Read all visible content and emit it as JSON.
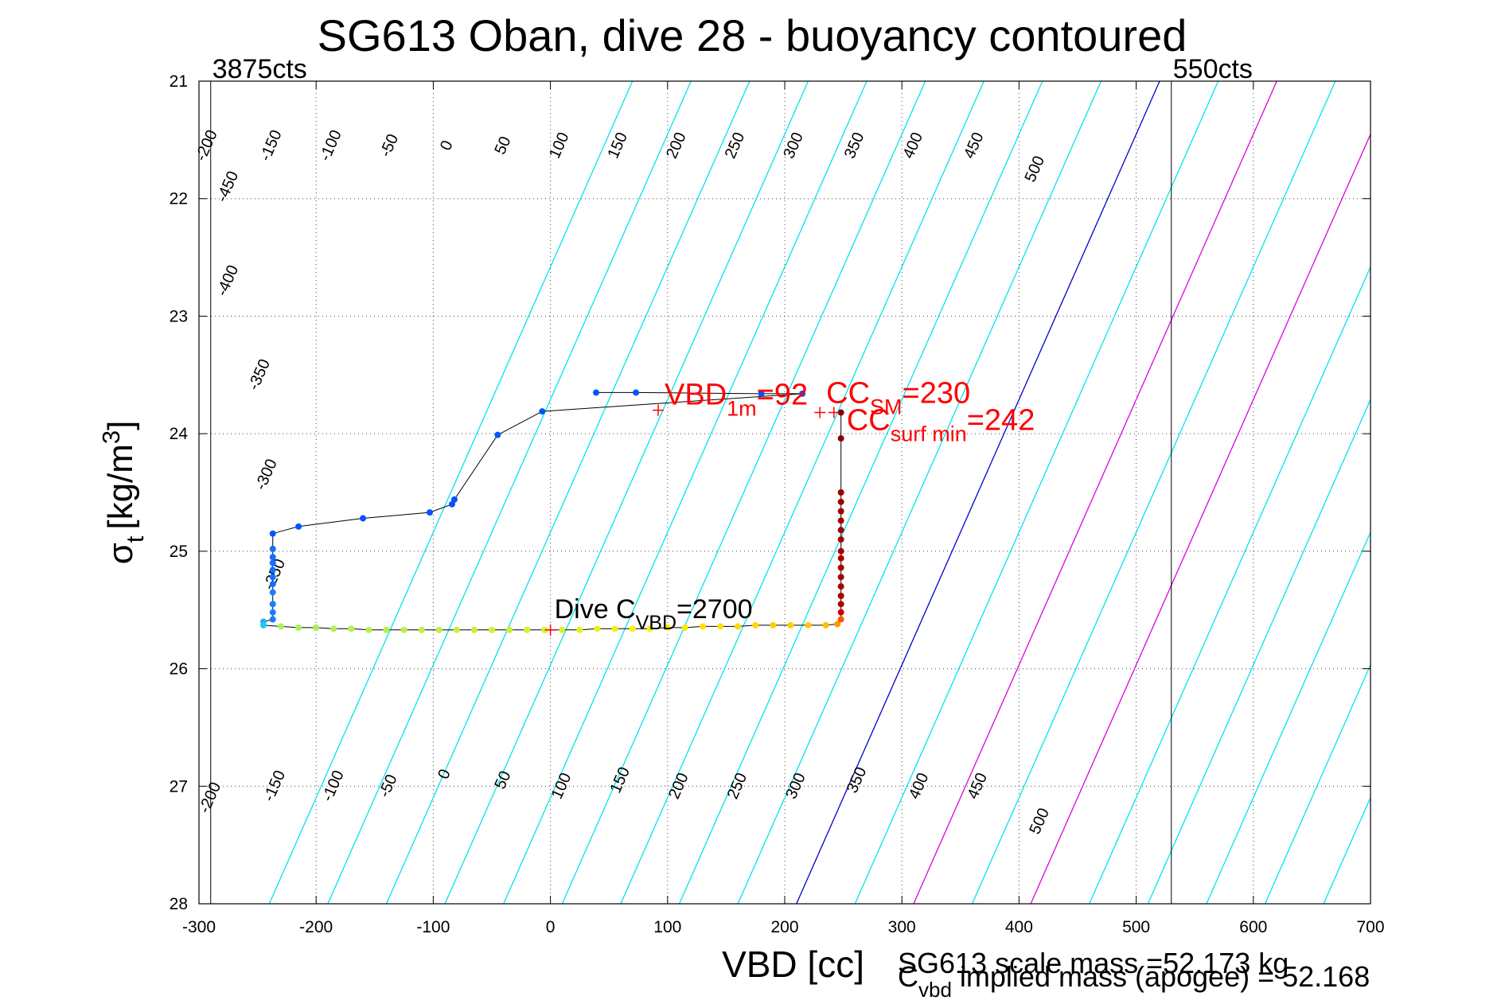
{
  "chart_data": {
    "type": "scatter",
    "title": "SG613 Oban, dive 28 - buoyancy contoured",
    "xlabel": "VBD [cc]",
    "ylabel_main": "σ",
    "ylabel_sub": "t",
    "ylabel_unit": "[kg/m",
    "ylabel_sup": "3",
    "ylabel_close": "]",
    "xlim": [
      -300,
      700
    ],
    "ylim": [
      21,
      28
    ],
    "y_reversed": true,
    "grid": true,
    "x_ticks": [
      -300,
      -200,
      -100,
      0,
      100,
      200,
      300,
      400,
      500,
      600,
      700
    ],
    "y_ticks": [
      21,
      22,
      23,
      24,
      25,
      26,
      27,
      28
    ],
    "vbd_limits": {
      "min": {
        "x": -290,
        "label": "3875cts"
      },
      "max": {
        "x": 530,
        "label": "550cts"
      }
    },
    "contour_geometry": {
      "ref_x_at_top": 520,
      "ref_x_at_bottom": 210,
      "spacing": 50
    },
    "contour_values": [
      -450,
      -400,
      -350,
      -300,
      -250,
      -200,
      -150,
      -100,
      -50,
      0,
      50,
      100,
      150,
      200,
      250,
      300,
      350,
      400,
      450,
      500
    ],
    "contour_colors": {
      "default": "#00e5ee",
      "zero": "#0000cc",
      "highlight": "#e000e0",
      "highlight_values": [
        100,
        200
      ]
    },
    "top_labels": [
      {
        "text": "-450",
        "x": -275,
        "y": 21.9
      },
      {
        "text": "-400",
        "x": -275,
        "y": 22.7
      },
      {
        "text": "-350",
        "x": -248,
        "y": 23.5
      },
      {
        "text": "-300",
        "x": -242,
        "y": 24.35
      },
      {
        "text": "-250",
        "x": -235,
        "y": 25.2
      },
      {
        "text": "-200",
        "x": -293,
        "y": 21.55
      },
      {
        "text": "-150",
        "x": -238,
        "y": 21.55
      },
      {
        "text": "-100",
        "x": -187,
        "y": 21.55
      },
      {
        "text": "-50",
        "x": -137,
        "y": 21.55
      },
      {
        "text": "0",
        "x": -88,
        "y": 21.55
      },
      {
        "text": "50",
        "x": -40,
        "y": 21.55
      },
      {
        "text": "100",
        "x": 8,
        "y": 21.55
      },
      {
        "text": "150",
        "x": 58,
        "y": 21.55
      },
      {
        "text": "200",
        "x": 108,
        "y": 21.55
      },
      {
        "text": "250",
        "x": 158,
        "y": 21.55
      },
      {
        "text": "300",
        "x": 208,
        "y": 21.55
      },
      {
        "text": "350",
        "x": 260,
        "y": 21.55
      },
      {
        "text": "400",
        "x": 310,
        "y": 21.55
      },
      {
        "text": "450",
        "x": 362,
        "y": 21.55
      },
      {
        "text": "500",
        "x": 414,
        "y": 21.75
      }
    ],
    "bottom_labels": [
      {
        "text": "-200",
        "x": -290,
        "y": 27.1
      },
      {
        "text": "-150",
        "x": -235,
        "y": 27.0
      },
      {
        "text": "-100",
        "x": -185,
        "y": 27.0
      },
      {
        "text": "-50",
        "x": -138,
        "y": 27.0
      },
      {
        "text": "0",
        "x": -90,
        "y": 26.9
      },
      {
        "text": "50",
        "x": -40,
        "y": 26.95
      },
      {
        "text": "100",
        "x": 10,
        "y": 27.0
      },
      {
        "text": "150",
        "x": 60,
        "y": 26.95
      },
      {
        "text": "200",
        "x": 110,
        "y": 27.0
      },
      {
        "text": "250",
        "x": 160,
        "y": 27.0
      },
      {
        "text": "300",
        "x": 210,
        "y": 27.0
      },
      {
        "text": "350",
        "x": 262,
        "y": 26.95
      },
      {
        "text": "400",
        "x": 315,
        "y": 27.0
      },
      {
        "text": "450",
        "x": 365,
        "y": 27.0
      },
      {
        "text": "500",
        "x": 418,
        "y": 27.3
      }
    ],
    "trace_line_color": "#000000",
    "trace_points": [
      {
        "x": 39,
        "y": 23.65,
        "c": "#0055ff"
      },
      {
        "x": 73,
        "y": 23.65,
        "c": "#0055ff"
      },
      {
        "x": 180,
        "y": 23.66,
        "c": "#0055ff"
      },
      {
        "x": 215,
        "y": 23.66,
        "c": "#0055ff"
      },
      {
        "x": -7,
        "y": 23.81,
        "c": "#0055ff"
      },
      {
        "x": -45,
        "y": 24.01,
        "c": "#0055ff"
      },
      {
        "x": -82,
        "y": 24.56,
        "c": "#0055ff"
      },
      {
        "x": -84,
        "y": 24.6,
        "c": "#0055ff"
      },
      {
        "x": -103,
        "y": 24.67,
        "c": "#0055ff"
      },
      {
        "x": -160,
        "y": 24.72,
        "c": "#0055ff"
      },
      {
        "x": -215,
        "y": 24.79,
        "c": "#0055ff"
      },
      {
        "x": -237,
        "y": 24.85,
        "c": "#0055ff"
      },
      {
        "x": -237,
        "y": 24.98,
        "c": "#1470ff"
      },
      {
        "x": -237,
        "y": 25.05,
        "c": "#1470ff"
      },
      {
        "x": -237,
        "y": 25.1,
        "c": "#1470ff"
      },
      {
        "x": -237,
        "y": 25.16,
        "c": "#1470ff"
      },
      {
        "x": -237,
        "y": 25.22,
        "c": "#1470ff"
      },
      {
        "x": -237,
        "y": 25.28,
        "c": "#1470ff"
      },
      {
        "x": -237,
        "y": 25.35,
        "c": "#1a7dff"
      },
      {
        "x": -237,
        "y": 25.45,
        "c": "#1a7dff"
      },
      {
        "x": -237,
        "y": 25.52,
        "c": "#1a7dff"
      },
      {
        "x": -237,
        "y": 25.58,
        "c": "#1a7dff"
      },
      {
        "x": -245,
        "y": 25.6,
        "c": "#20b0f0"
      },
      {
        "x": -245,
        "y": 25.63,
        "c": "#20c8f0"
      },
      {
        "x": -230,
        "y": 25.64,
        "c": "#a8f060"
      },
      {
        "x": -215,
        "y": 25.65,
        "c": "#a8f060"
      },
      {
        "x": -200,
        "y": 25.65,
        "c": "#a8f060"
      },
      {
        "x": -185,
        "y": 25.66,
        "c": "#b4f050"
      },
      {
        "x": -170,
        "y": 25.66,
        "c": "#b4f050"
      },
      {
        "x": -155,
        "y": 25.67,
        "c": "#b4f050"
      },
      {
        "x": -140,
        "y": 25.67,
        "c": "#b4f050"
      },
      {
        "x": -125,
        "y": 25.67,
        "c": "#c0f040"
      },
      {
        "x": -110,
        "y": 25.67,
        "c": "#c0f040"
      },
      {
        "x": -95,
        "y": 25.67,
        "c": "#c0f040"
      },
      {
        "x": -80,
        "y": 25.67,
        "c": "#c8f038"
      },
      {
        "x": -65,
        "y": 25.67,
        "c": "#c8f038"
      },
      {
        "x": -50,
        "y": 25.67,
        "c": "#d0f030"
      },
      {
        "x": -35,
        "y": 25.67,
        "c": "#d0f030"
      },
      {
        "x": -20,
        "y": 25.67,
        "c": "#d8f028"
      },
      {
        "x": -5,
        "y": 25.67,
        "c": "#d8f028"
      },
      {
        "x": 10,
        "y": 25.67,
        "c": "#e0f020"
      },
      {
        "x": 25,
        "y": 25.67,
        "c": "#e8f018"
      },
      {
        "x": 40,
        "y": 25.66,
        "c": "#f0f010"
      },
      {
        "x": 55,
        "y": 25.66,
        "c": "#f0f010"
      },
      {
        "x": 70,
        "y": 25.66,
        "c": "#f8f000"
      },
      {
        "x": 85,
        "y": 25.66,
        "c": "#f8f000"
      },
      {
        "x": 100,
        "y": 25.65,
        "c": "#ffe800"
      },
      {
        "x": 115,
        "y": 25.65,
        "c": "#ffe800"
      },
      {
        "x": 130,
        "y": 25.64,
        "c": "#ffe000"
      },
      {
        "x": 145,
        "y": 25.64,
        "c": "#ffe000"
      },
      {
        "x": 160,
        "y": 25.64,
        "c": "#ffd800"
      },
      {
        "x": 175,
        "y": 25.63,
        "c": "#ffd800"
      },
      {
        "x": 190,
        "y": 25.63,
        "c": "#ffd000"
      },
      {
        "x": 205,
        "y": 25.63,
        "c": "#ffd000"
      },
      {
        "x": 220,
        "y": 25.63,
        "c": "#ffc800"
      },
      {
        "x": 235,
        "y": 25.63,
        "c": "#ffc000"
      },
      {
        "x": 245,
        "y": 25.62,
        "c": "#ff9900"
      },
      {
        "x": 248,
        "y": 25.58,
        "c": "#ff5500"
      },
      {
        "x": 248,
        "y": 25.52,
        "c": "#cc0000"
      },
      {
        "x": 248,
        "y": 25.45,
        "c": "#aa0000"
      },
      {
        "x": 248,
        "y": 25.38,
        "c": "#aa0000"
      },
      {
        "x": 248,
        "y": 25.3,
        "c": "#aa0000"
      },
      {
        "x": 248,
        "y": 25.22,
        "c": "#aa0000"
      },
      {
        "x": 248,
        "y": 25.14,
        "c": "#aa0000"
      },
      {
        "x": 248,
        "y": 25.06,
        "c": "#aa0000"
      },
      {
        "x": 248,
        "y": 25.0,
        "c": "#aa0000"
      },
      {
        "x": 248,
        "y": 24.9,
        "c": "#a00000"
      },
      {
        "x": 248,
        "y": 24.82,
        "c": "#a00000"
      },
      {
        "x": 248,
        "y": 24.74,
        "c": "#a00000"
      },
      {
        "x": 248,
        "y": 24.66,
        "c": "#a00000"
      },
      {
        "x": 248,
        "y": 24.58,
        "c": "#a00000"
      },
      {
        "x": 248,
        "y": 24.5,
        "c": "#990000"
      },
      {
        "x": 248,
        "y": 24.04,
        "c": "#880000"
      },
      {
        "x": 248,
        "y": 23.82,
        "c": "#880000"
      }
    ],
    "markers": {
      "vbd_1m": {
        "x": 92,
        "y": 23.8
      },
      "cc_sm": {
        "x": 230,
        "y": 23.82
      },
      "cc_surf": {
        "x": 242,
        "y": 23.82
      },
      "dive": {
        "x": 0,
        "y": 25.67
      }
    },
    "annotations": {
      "vbd_main": "VBD",
      "vbd_sub": "1m",
      "vbd_val": "=92",
      "ccsm_main": "CC",
      "ccsm_sub": "SM",
      "ccsm_val": "=230",
      "ccsurf_main": "CC",
      "ccsurf_sub": "surf min",
      "ccsurf_val": "=242",
      "dive_main": "Dive C",
      "dive_sub": "VBD",
      "dive_val": "=2700",
      "mass_line": "SG613 scale mass =52.173 kg",
      "cvbd_main": "C",
      "cvbd_sub": "vbd",
      "cvbd_rest": " implied mass (apogee) = 52.168"
    }
  }
}
